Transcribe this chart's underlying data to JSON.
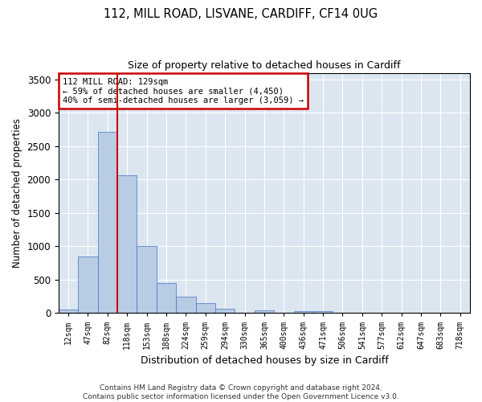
{
  "title_line1": "112, MILL ROAD, LISVANE, CARDIFF, CF14 0UG",
  "title_line2": "Size of property relative to detached houses in Cardiff",
  "xlabel": "Distribution of detached houses by size in Cardiff",
  "ylabel": "Number of detached properties",
  "categories": [
    "12sqm",
    "47sqm",
    "82sqm",
    "118sqm",
    "153sqm",
    "188sqm",
    "224sqm",
    "259sqm",
    "294sqm",
    "330sqm",
    "365sqm",
    "400sqm",
    "436sqm",
    "471sqm",
    "506sqm",
    "541sqm",
    "577sqm",
    "612sqm",
    "647sqm",
    "683sqm",
    "718sqm"
  ],
  "values": [
    55,
    850,
    2720,
    2060,
    1010,
    450,
    240,
    155,
    65,
    0,
    45,
    0,
    30,
    25,
    0,
    0,
    0,
    0,
    0,
    0,
    0
  ],
  "bar_color": "#b8cce4",
  "bar_edge_color": "#4472c4",
  "bar_width": 1.0,
  "property_bin_index": 3,
  "vline_color": "#cc0000",
  "annotation_text": "112 MILL ROAD: 129sqm\n← 59% of detached houses are smaller (4,450)\n40% of semi-detached houses are larger (3,059) →",
  "annotation_box_color": "#ffffff",
  "annotation_box_edge": "#cc0000",
  "ylim": [
    0,
    3600
  ],
  "yticks": [
    0,
    500,
    1000,
    1500,
    2000,
    2500,
    3000,
    3500
  ],
  "grid_color": "#ffffff",
  "bg_color": "#dce6f1",
  "fig_bg_color": "#ffffff",
  "footer_line1": "Contains HM Land Registry data © Crown copyright and database right 2024.",
  "footer_line2": "Contains public sector information licensed under the Open Government Licence v3.0."
}
